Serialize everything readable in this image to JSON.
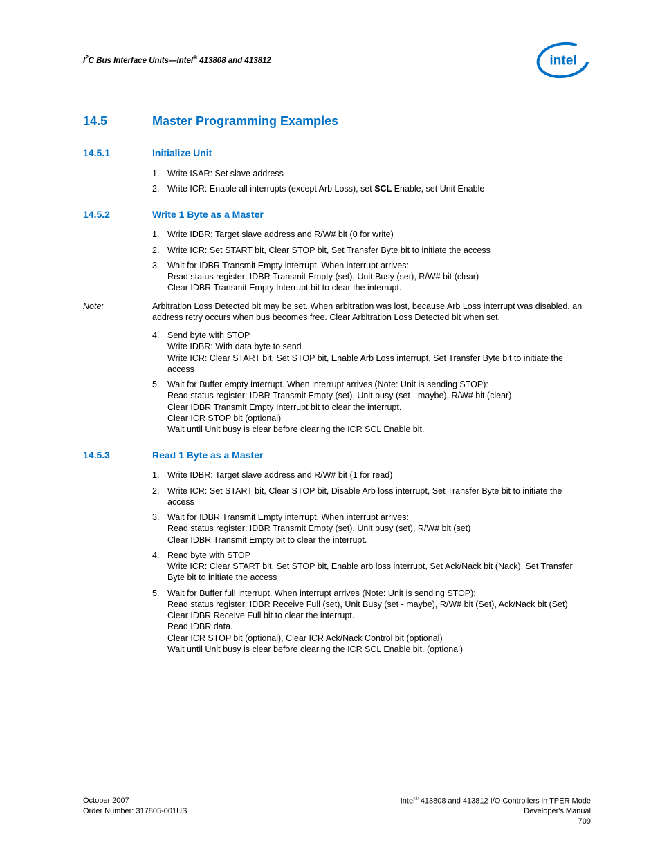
{
  "header": {
    "text_pre": "I",
    "text_sup1": "2",
    "text_mid": "C Bus Interface Units—Intel",
    "text_sup2": "®",
    "text_post": " 413808 and 413812"
  },
  "logo": {
    "fill": "#0071c5",
    "stroke": "#0071c5"
  },
  "sections": {
    "s145": {
      "num": "14.5",
      "title": "Master Programming Examples"
    },
    "s1451": {
      "num": "14.5.1",
      "title": "Initialize Unit",
      "items": [
        "Write ISAR: Set slave address",
        "Write ICR: Enable all interrupts (except Arb Loss), set <b>SCL</b> Enable, set Unit Enable"
      ]
    },
    "s1452": {
      "num": "14.5.2",
      "title": "Write 1 Byte as a Master",
      "items_a": [
        "Write IDBR: Target slave address and R/W# bit (0 for write)",
        "Write ICR: Set START bit, Clear STOP bit, Set Transfer Byte bit to initiate the access",
        "Wait for IDBR Transmit Empty interrupt. When interrupt arrives:\nRead status register: IDBR Transmit Empty (set), Unit Busy (set), R/W# bit (clear)\nClear IDBR Transmit Empty Interrupt bit to clear the interrupt."
      ],
      "note_label": "Note:",
      "note": "Arbitration Loss Detected bit may be set. When arbitration was lost, because Arb Loss interrupt was disabled, an address retry occurs when bus becomes free. Clear Arbitration Loss Detected bit when set.",
      "items_b": [
        "Send byte with STOP\nWrite IDBR: With data byte to send\nWrite ICR: Clear START bit, Set STOP bit, Enable Arb Loss interrupt, Set Transfer Byte bit to initiate the access",
        "Wait for Buffer empty interrupt. When interrupt arrives (Note: Unit is sending STOP):\nRead status register: IDBR Transmit Empty (set), Unit busy (set - maybe), R/W# bit (clear)\nClear IDBR Transmit Empty Interrupt bit to clear the interrupt.\nClear ICR STOP bit (optional)\nWait until Unit busy is clear before clearing the ICR SCL Enable bit."
      ]
    },
    "s1453": {
      "num": "14.5.3",
      "title": "Read 1 Byte as a Master",
      "items": [
        "Write IDBR: Target slave address and R/W# bit (1 for read)",
        "Write ICR: Set START bit, Clear STOP bit, Disable Arb loss interrupt, Set Transfer Byte bit to initiate the access",
        "Wait for IDBR Transmit Empty interrupt. When interrupt arrives:\nRead status register: IDBR Transmit Empty (set), Unit busy (set), R/W# bit (set)\nClear IDBR Transmit Empty bit to clear the interrupt.",
        "Read byte with STOP\nWrite ICR: Clear START bit, Set STOP bit, Enable arb loss interrupt, Set Ack/Nack bit (Nack), Set Transfer Byte bit to initiate the access",
        "Wait for Buffer full interrupt. When interrupt arrives (Note: Unit is sending STOP):\nRead status register: IDBR Receive Full (set), Unit Busy (set - maybe), R/W# bit (Set), Ack/Nack bit (Set)\nClear IDBR Receive Full bit to clear the interrupt.\nRead IDBR data.\nClear ICR STOP bit (optional), Clear ICR Ack/Nack Control bit (optional)\nWait until Unit busy is clear before clearing the ICR SCL Enable bit. (optional)"
      ]
    }
  },
  "footer": {
    "left_line1": "October 2007",
    "left_line2": "Order Number: 317805-001US",
    "right_line1_pre": "Intel",
    "right_line1_sup": "®",
    "right_line1_post": " 413808 and 413812 I/O Controllers in TPER Mode",
    "right_line2": "Developer's Manual",
    "right_line3": "709"
  }
}
